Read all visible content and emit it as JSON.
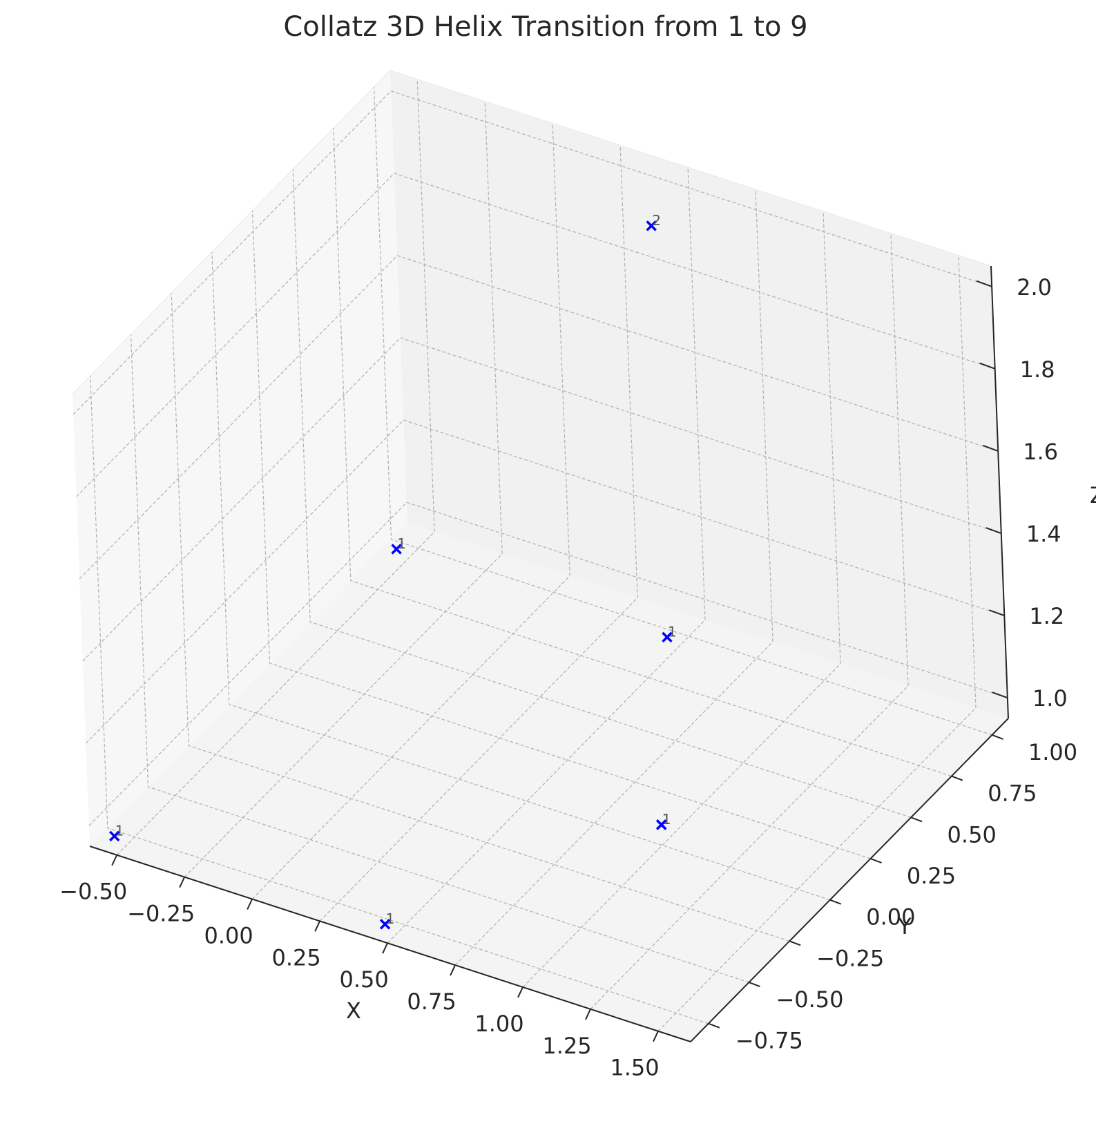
{
  "chart_data": {
    "type": "scatter",
    "title": "Collatz 3D Helix Transition from 1 to 9",
    "xlabel": "X",
    "ylabel": "Y",
    "zlabel": "Z",
    "xlim": [
      -0.6,
      1.62
    ],
    "ylim": [
      -0.86,
      1.1
    ],
    "zlim": [
      0.95,
      2.05
    ],
    "xticks": [
      "−0.50",
      "−0.25",
      "0.00",
      "0.25",
      "0.50",
      "0.75",
      "1.00",
      "1.25",
      "1.50"
    ],
    "yticks": [
      "−0.75",
      "−0.50",
      "−0.25",
      "0.00",
      "0.25",
      "0.50",
      "0.75",
      "1.00"
    ],
    "zticks": [
      "1.0",
      "1.2",
      "1.4",
      "1.6",
      "1.8",
      "2.0"
    ],
    "grid": true,
    "marker": "x",
    "marker_color": "#0000ff",
    "points": [
      {
        "x": 1.0,
        "y": 0.0,
        "z": 1.0,
        "label": "1"
      },
      {
        "x": 0.5,
        "y": 0.87,
        "z": 1.0,
        "label": "1"
      },
      {
        "x": -0.5,
        "y": 0.87,
        "z": 1.0,
        "label": "1"
      },
      {
        "x": -0.5,
        "y": -0.87,
        "z": 1.0,
        "label": "1"
      },
      {
        "x": 0.5,
        "y": -0.87,
        "z": 1.0,
        "label": "1"
      },
      {
        "x": 1.0,
        "y": 0.0,
        "z": 1.0,
        "label": "1"
      },
      {
        "x": 0.5,
        "y": 0.87,
        "z": 2.0,
        "label": "2"
      }
    ]
  }
}
